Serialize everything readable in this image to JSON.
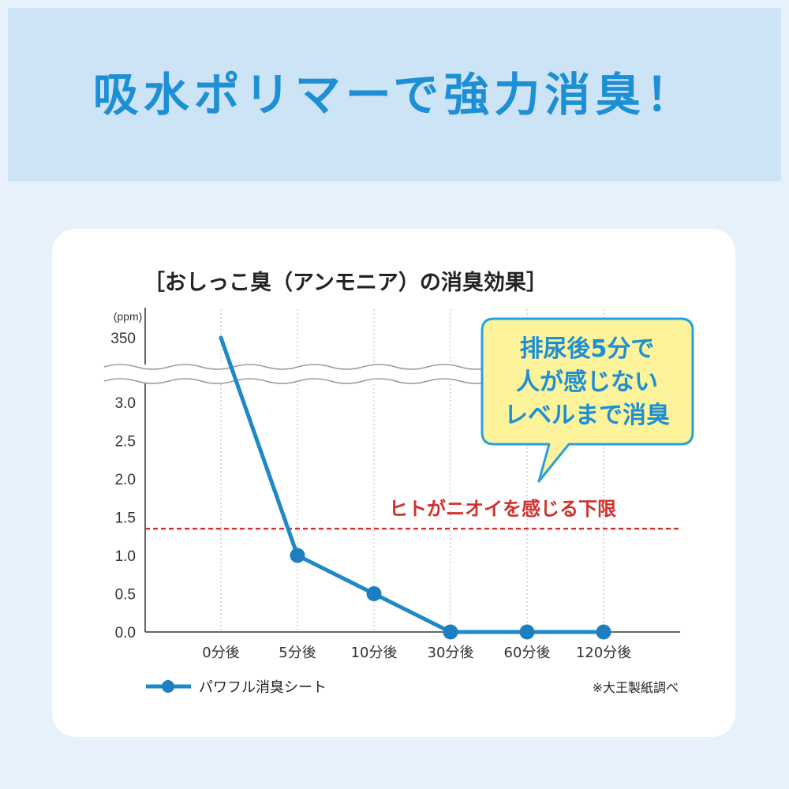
{
  "header": {
    "title": "吸水ポリマーで強力消臭！",
    "background": "#cde3f6",
    "title_color": "#1d8fd4"
  },
  "chart_data": {
    "type": "line",
    "title": "［おしっこ臭（アンモニア）の消臭効果］",
    "ylabel": "(ppm)",
    "categories": [
      "0分後",
      "5分後",
      "10分後",
      "30分後",
      "60分後",
      "120分後"
    ],
    "y_ticks": [
      "0.0",
      "0.5",
      "1.0",
      "1.5",
      "2.0",
      "2.5",
      "3.0",
      "350"
    ],
    "axis_break": "3.0〜350",
    "ylim": [
      0,
      350
    ],
    "grid": "vertical dotted",
    "series": [
      {
        "name": "パワフル消臭シート",
        "values": [
          350,
          1.0,
          0.5,
          0.0,
          0.0,
          0.0
        ],
        "color": "#1e88c8",
        "marker_color": "#1d7fbe"
      }
    ],
    "threshold": {
      "label": "ヒトがニオイを感じる下限",
      "value": 1.35,
      "color": "#d2302c"
    },
    "callout": {
      "lines": [
        "排尿後5分で",
        "人が感じない",
        "レベルまで消臭"
      ],
      "fill": "#fdf39a",
      "border": "#28a0e0",
      "text_color": "#1d8fd4"
    },
    "legend_position": "bottom-left",
    "source": "※大王製紙調べ"
  }
}
